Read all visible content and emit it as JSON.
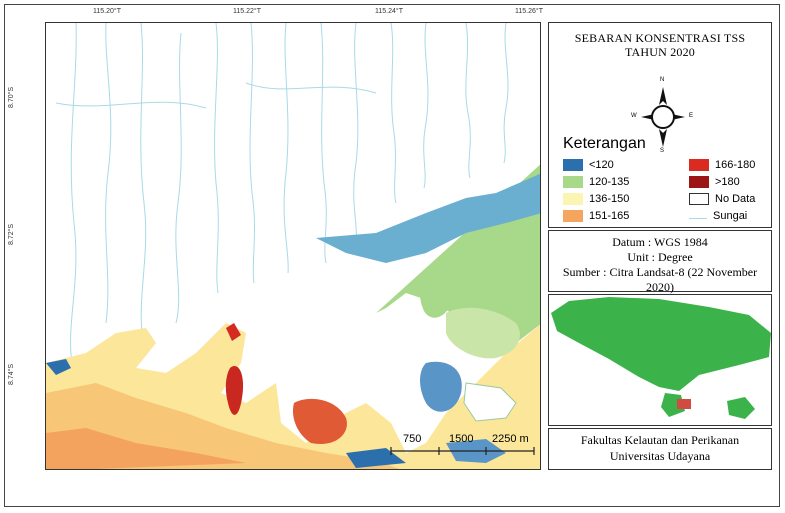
{
  "coords": {
    "top": [
      "115.20°T",
      "115.22°T",
      "115.24°T",
      "115.26°T"
    ],
    "left": [
      "8.70°S",
      "8.72°S",
      "8.74°S"
    ]
  },
  "title": {
    "line1": "SEBARAN KONSENTRASI TSS",
    "line2": "TAHUN 2020"
  },
  "compass": {
    "n": "N",
    "s": "S",
    "e": "E",
    "w": "W"
  },
  "legend": {
    "title": "Keterangan",
    "items": [
      {
        "label": "<120",
        "color": "#2b6fad"
      },
      {
        "label": "120-135",
        "color": "#a8d889"
      },
      {
        "label": "136-150",
        "color": "#fbf5b4"
      },
      {
        "label": "151-165",
        "color": "#f5a55d"
      },
      {
        "label": "166-180",
        "color": "#d92b1f"
      },
      {
        "label": ">180",
        "color": "#9c1515"
      },
      {
        "label": "No Data",
        "color": "#ffffff"
      },
      {
        "label": "Sungai",
        "color": "#a9d9e8"
      }
    ]
  },
  "info": {
    "datum": "Datum : WGS 1984",
    "unit": "Unit : Degree",
    "source": "Sumber : Citra Landsat-8 (22 November 2020)"
  },
  "credit": {
    "line1": "Fakultas Kelautan dan Perikanan",
    "line2": "Universitas Udayana"
  },
  "scalebar": {
    "labels": [
      "750",
      "1500",
      "2250 m"
    ]
  },
  "colors": {
    "land_inset": "#3cb34a",
    "study_area": "#d24b43",
    "river": "#a9d9e8"
  }
}
